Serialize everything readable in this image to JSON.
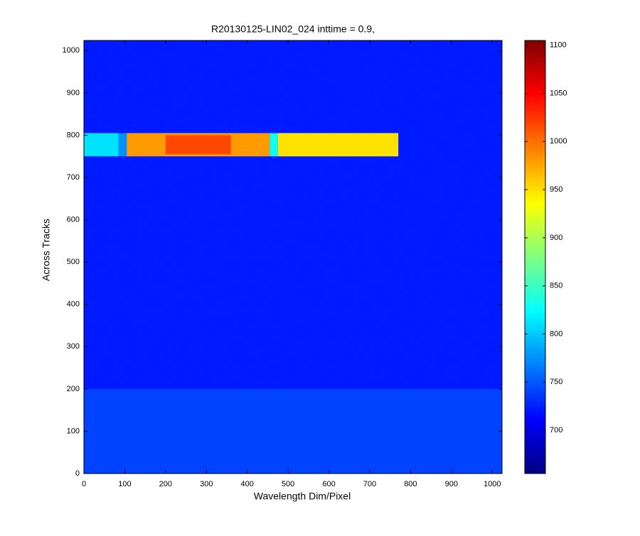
{
  "chart_data": {
    "type": "heatmap",
    "title": "R20130125-LIN02_024 inttime = 0.9,",
    "xlabel": "Wavelength Dim/Pixel",
    "ylabel": "Across Tracks",
    "xlim": [
      0,
      1024
    ],
    "ylim": [
      0,
      1024
    ],
    "xticks": [
      0,
      100,
      200,
      300,
      400,
      500,
      600,
      700,
      800,
      900,
      1000
    ],
    "yticks": [
      0,
      100,
      200,
      300,
      400,
      500,
      600,
      700,
      800,
      900,
      1000
    ],
    "colormap": "jet",
    "clim": [
      655,
      1105
    ],
    "cticks": [
      700,
      750,
      800,
      850,
      900,
      950,
      1000,
      1050,
      1100
    ],
    "cells": [
      {
        "x": [
          0,
          1024
        ],
        "y": [
          0,
          1024
        ],
        "value": 722
      },
      {
        "x": [
          0,
          1024
        ],
        "y": [
          0,
          200
        ],
        "value": 738
      },
      {
        "x": [
          0,
          85
        ],
        "y": [
          750,
          805
        ],
        "value": 810
      },
      {
        "x": [
          85,
          105
        ],
        "y": [
          750,
          805
        ],
        "value": 770
      },
      {
        "x": [
          105,
          455
        ],
        "y": [
          750,
          805
        ],
        "value": 985
      },
      {
        "x": [
          200,
          360
        ],
        "y": [
          755,
          800
        ],
        "value": 1020
      },
      {
        "x": [
          455,
          475
        ],
        "y": [
          750,
          805
        ],
        "value": 830
      },
      {
        "x": [
          475,
          770
        ],
        "y": [
          750,
          805
        ],
        "value": 950
      }
    ]
  }
}
